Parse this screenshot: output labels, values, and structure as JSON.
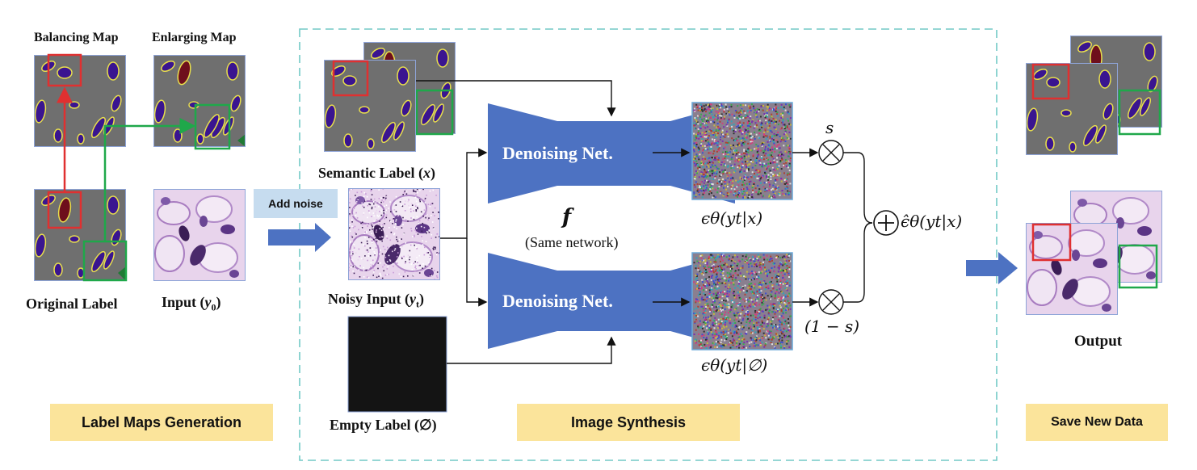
{
  "stages": {
    "label_maps": "Label Maps Generation",
    "image_synthesis": "Image Synthesis",
    "save": "Save New Data"
  },
  "labels": {
    "balancing_map": "Balancing Map",
    "enlarging_map": "Enlarging Map",
    "original_label": "Original Label",
    "input": "Input (",
    "input_var": "y",
    "input_sub": "0",
    "input_close": ")",
    "semantic_label": "Semantic Label (",
    "semantic_var": "x",
    "semantic_close": ")",
    "noisy_input": "Noisy Input (",
    "noisy_var": "y",
    "noisy_sub": "t",
    "noisy_close": ")",
    "empty_label": "Empty Label (∅)",
    "output": "Output",
    "add_noise": "Add noise",
    "denoise_top": "Denoising Net.",
    "denoise_bottom": "Denoising Net.",
    "f_symbol": "f",
    "same_network": "(Same network)",
    "eps_cond": "ϵθ(yt|x)",
    "eps_uncond": "ϵθ(yt|∅)",
    "eps_hat": "ϵ̂θ(yt|x)",
    "s": "s",
    "one_minus_s": "(1 − s)"
  },
  "colors": {
    "tissue_bg": "#6f6f6f",
    "nucleus": "#3a1590",
    "nucleus_red": "#6e0f1c",
    "outline": "#e9e04c",
    "red_box": "#e03030",
    "green_box": "#1fa84a",
    "net_blue": "#4d72c2",
    "dashed": "#72c9c6",
    "stage_yellow": "#fbe49b",
    "noise_blue": "#c6dcef"
  }
}
